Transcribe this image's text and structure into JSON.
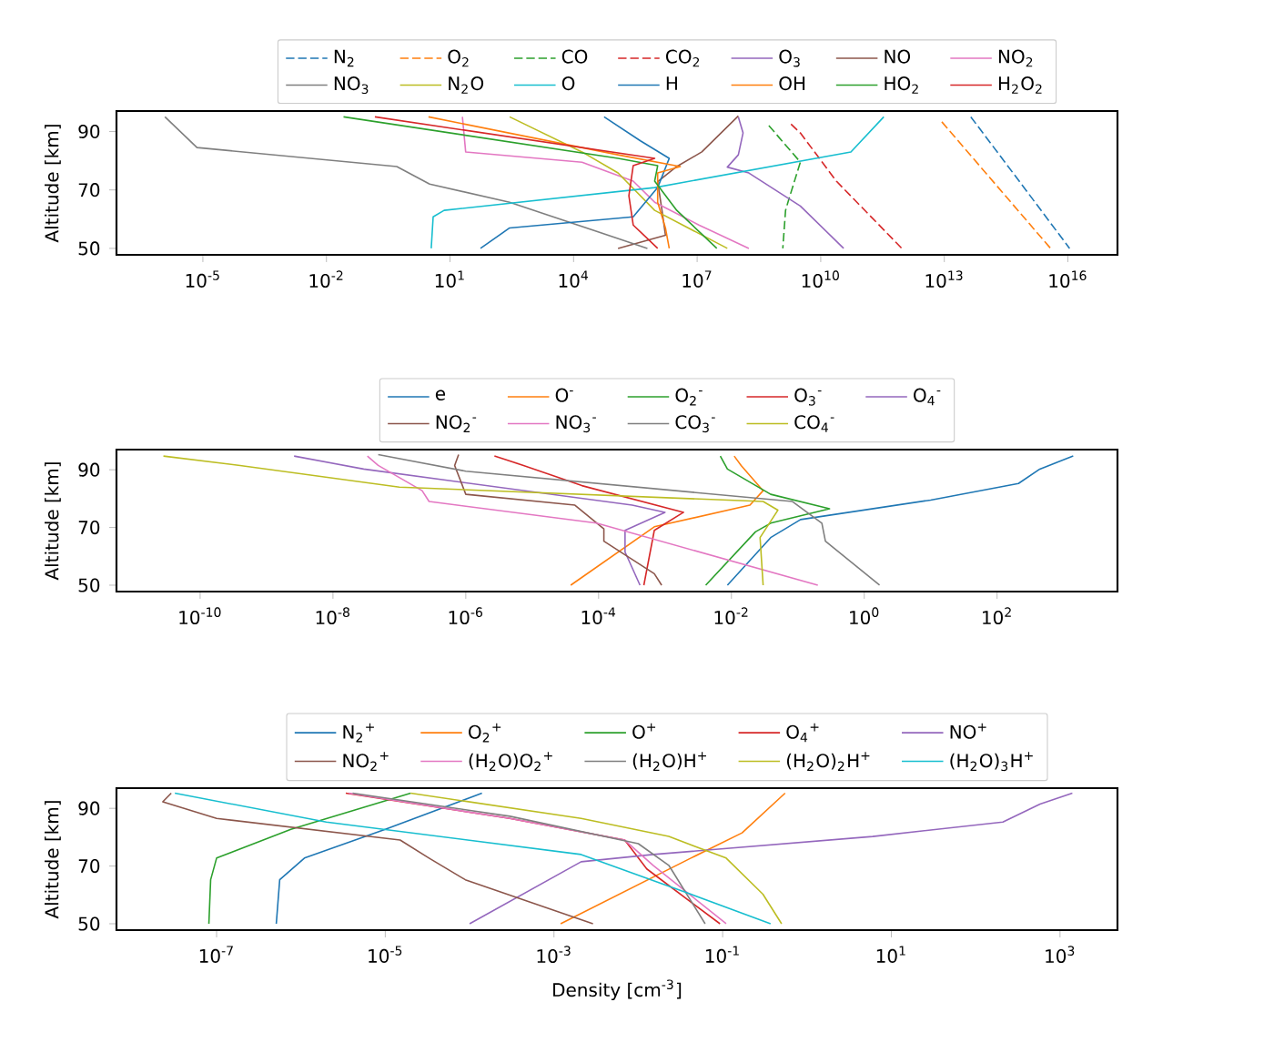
{
  "chart_data": [
    {
      "type": "line",
      "ylabel": "Altitude [km]",
      "log": "x",
      "legend": "top",
      "xlim": [
        8e-08,
        1.6e+17
      ],
      "ylim": [
        47.8,
        97
      ],
      "yticks": [
        50,
        70,
        90
      ],
      "xticks": [
        {
          "value": 1e-05,
          "label": "10$^{-5}$"
        },
        {
          "value": 0.01,
          "label": "10$^{-2}$"
        },
        {
          "value": 10.0,
          "label": "10$^{1}$"
        },
        {
          "value": 10000.0,
          "label": "10$^{4}$"
        },
        {
          "value": 10000000.0,
          "label": "10$^{7}$"
        },
        {
          "value": 10000000000.0,
          "label": "10$^{10}$"
        },
        {
          "value": 10000000000000.0,
          "label": "10$^{13}$"
        },
        {
          "value": 1e+16,
          "label": "10$^{16}$"
        }
      ],
      "series": [
        {
          "name": "N$_{2}$",
          "color": "#1f77b4",
          "line_style": "dashed",
          "x": [
            44000000000000.0,
            700000000000000.0,
            1.1e+16
          ],
          "values": [
            95,
            72.5,
            50
          ]
        },
        {
          "name": "O$_{2}$",
          "color": "#ff7f0e",
          "line_style": "dashed",
          "x": [
            8700000000000.0,
            3800000000000000.0
          ],
          "values": [
            93.3,
            50
          ]
        },
        {
          "name": "CO",
          "color": "#2ca02c",
          "line_style": "dashed",
          "x": [
            550000000.0,
            3200000000.0,
            1700000000.0,
            1400000000.0,
            1200000000.0
          ],
          "values": [
            92,
            79.5,
            67,
            63,
            50
          ]
        },
        {
          "name": "CO$_{2}$",
          "color": "#d62728",
          "line_style": "dashed",
          "x": [
            1900000000.0,
            3200000000.0,
            24000000000.0,
            930000000000.0
          ],
          "values": [
            92.5,
            89.5,
            73,
            50
          ]
        },
        {
          "name": "O$_{3}$",
          "color": "#9467bd",
          "x": [
            100000000.0,
            130000000.0,
            100000000.0,
            54000000.0,
            180000000.0,
            3200000000.0,
            36000000000.0
          ],
          "values": [
            95,
            89.5,
            82,
            77.8,
            75.8,
            64.5,
            50
          ]
        },
        {
          "name": "NO",
          "color": "#8c564b",
          "x": [
            100000000.0,
            13000000.0,
            3200000.0,
            1100000.0,
            1400000.0,
            1700000.0,
            120000.0
          ],
          "values": [
            95.3,
            83,
            78,
            72.8,
            63,
            54.5,
            50
          ]
        },
        {
          "name": "NO$_{2}$",
          "color": "#e377c2",
          "x": [
            20,
            24,
            16000.0,
            280000.0,
            930000.0,
            11000000.0,
            180000000.0
          ],
          "values": [
            95,
            83,
            79.5,
            73,
            65.8,
            58,
            50
          ]
        },
        {
          "name": "NO$_{3}$",
          "color": "#7f7f7f",
          "x": [
            1.2e-06,
            7.2e-06,
            0.51,
            3.2,
            280,
            620000.0
          ],
          "values": [
            95,
            84.5,
            78,
            72,
            65.8,
            50
          ]
        },
        {
          "name": "N$_{2}$O",
          "color": "#bcbd22",
          "x": [
            280,
            16000.0,
            120000.0,
            930000.0,
            54000000.0
          ],
          "values": [
            95,
            83,
            75.8,
            63,
            50
          ]
        },
        {
          "name": "O",
          "color": "#17becf",
          "x": [
            340000000000.0,
            54000000000.0,
            930000.0,
            7.2,
            3.9,
            3.5
          ],
          "values": [
            95,
            83,
            70.8,
            63,
            60.8,
            50
          ]
        },
        {
          "name": "H",
          "color": "#1f77b4",
          "x": [
            55000.0,
            420000.0,
            2100000.0,
            1100000.0,
            280000.0,
            280,
            55
          ],
          "values": [
            95,
            86.8,
            80.8,
            70.8,
            60.8,
            57,
            50
          ]
        },
        {
          "name": "OH",
          "color": "#ff7f0e",
          "x": [
            3,
            120000.0,
            3900000.0,
            1100000.0,
            1100000.0,
            1700000.0,
            2100000.0
          ],
          "values": [
            95,
            82,
            78,
            75.8,
            65.8,
            57,
            50
          ]
        },
        {
          "name": "HO$_{2}$",
          "color": "#2ca02c",
          "x": [
            0.026,
            120000.0,
            1100000.0,
            930000.0,
            3200000.0,
            30000000.0
          ],
          "values": [
            95,
            80.8,
            78.3,
            73,
            63,
            50
          ]
        },
        {
          "name": "H$_{2}$O$_{2}$",
          "color": "#d62728",
          "x": [
            0.15,
            930000.0,
            280000.0,
            220000.0,
            280000.0,
            1100000.0
          ],
          "values": [
            95,
            80.8,
            78.3,
            68,
            58,
            50
          ]
        }
      ]
    },
    {
      "type": "line",
      "ylabel": "Altitude [km]",
      "log": "x",
      "legend": "top",
      "xlim": [
        5.5e-12,
        6500
      ],
      "ylim": [
        47.8,
        97
      ],
      "yticks": [
        50,
        70,
        90
      ],
      "xticks": [
        {
          "value": 1e-10,
          "label": "10$^{-10}$"
        },
        {
          "value": 1e-08,
          "label": "10$^{-8}$"
        },
        {
          "value": 1e-06,
          "label": "10$^{-6}$"
        },
        {
          "value": 0.0001,
          "label": "10$^{-4}$"
        },
        {
          "value": 0.01,
          "label": "10$^{-2}$"
        },
        {
          "value": 1,
          "label": "10$^{0}$"
        },
        {
          "value": 100,
          "label": "10$^{2}$"
        }
      ],
      "series": [
        {
          "name": "e",
          "color": "#1f77b4",
          "x": [
            1400,
            440,
            210,
            10,
            0.11,
            0.039,
            0.0087
          ],
          "values": [
            94.75,
            90.25,
            85.25,
            79.5,
            72.75,
            66.5,
            50
          ]
        },
        {
          "name": "O$^{-}$",
          "color": "#ff7f0e",
          "x": [
            0.011,
            0.014,
            0.03,
            0.019,
            0.00069,
            3.8e-05
          ],
          "values": [
            94.75,
            91.5,
            82.75,
            77.75,
            70.25,
            50
          ]
        },
        {
          "name": "O$_{2}$$^{-}$",
          "color": "#2ca02c",
          "x": [
            0.0068,
            0.0087,
            0.039,
            0.3,
            0.039,
            0.023,
            0.0041
          ],
          "values": [
            94.75,
            90.25,
            81.5,
            76.5,
            71.5,
            68.5,
            50
          ]
        },
        {
          "name": "O$_{3}$$^{-}$",
          "color": "#d62728",
          "x": [
            2.7e-06,
            7.4e-06,
            5.6e-05,
            0.0019,
            0.00069,
            0.00048
          ],
          "values": [
            94.75,
            91.5,
            84.5,
            75.25,
            69,
            50
          ]
        },
        {
          "name": "O$_{4}$$^{-}$",
          "color": "#9467bd",
          "x": [
            2.6e-09,
            2.9e-08,
            0.00032,
            0.001,
            0.00025,
            0.00025,
            0.00042
          ],
          "values": [
            94.75,
            90.25,
            77.75,
            75.25,
            69,
            61.5,
            50
          ]
        },
        {
          "name": "NO$_{2}$$^{-}$",
          "color": "#8c564b",
          "x": [
            7.8e-07,
            6.8e-07,
            1e-06,
            4.4e-05,
            0.00012,
            0.00012,
            0.00069,
            0.00089
          ],
          "values": [
            95.25,
            91.5,
            81.5,
            77.75,
            69.5,
            65.25,
            54,
            50
          ]
        },
        {
          "name": "NO$_{3}$$^{-}$",
          "color": "#e377c2",
          "x": [
            3.3e-08,
            4.8e-08,
            2.2e-07,
            2.8e-07,
            9.3e-05,
            0.2
          ],
          "values": [
            94.75,
            91.5,
            82.75,
            79,
            71.5,
            50
          ]
        },
        {
          "name": "CO$_{3}$$^{-}$",
          "color": "#7f7f7f",
          "x": [
            4.8e-08,
            1e-06,
            0.083,
            0.23,
            0.26,
            1.7
          ],
          "values": [
            95.25,
            89.5,
            79,
            71.5,
            65.25,
            50
          ]
        },
        {
          "name": "CO$_{4}$$^{-}$",
          "color": "#bcbd22",
          "x": [
            2.8e-11,
            4e-10,
            1e-07,
            0.03,
            0.05,
            0.027,
            0.03
          ],
          "values": [
            94.75,
            91.5,
            84,
            79,
            76,
            66.5,
            50
          ]
        }
      ]
    },
    {
      "type": "line",
      "ylabel": "Altitude [km]",
      "xlabel": "Density [cm$^{-3}$]",
      "log": "x",
      "legend": "top",
      "xlim": [
        6.5e-09,
        4800
      ],
      "ylim": [
        47.8,
        97
      ],
      "yticks": [
        50,
        70,
        90
      ],
      "xticks": [
        {
          "value": 1e-07,
          "label": "10$^{-7}$"
        },
        {
          "value": 1e-05,
          "label": "10$^{-5}$"
        },
        {
          "value": 0.001,
          "label": "10$^{-3}$"
        },
        {
          "value": 0.1,
          "label": "10$^{-1}$"
        },
        {
          "value": 10,
          "label": "10$^{1}$"
        },
        {
          "value": 1000,
          "label": "10$^{3}$"
        }
      ],
      "series": [
        {
          "name": "N$_{2}$$^{+}$",
          "color": "#1f77b4",
          "x": [
            0.00014,
            1e-05,
            1.1e-06,
            5.6e-07,
            5.1e-07
          ],
          "values": [
            95.25,
            82.75,
            72.75,
            65.25,
            50
          ]
        },
        {
          "name": "O$_{2}$$^{+}$",
          "color": "#ff7f0e",
          "x": [
            0.55,
            0.17,
            0.042,
            0.0012
          ],
          "values": [
            95.25,
            81.5,
            72.75,
            50
          ]
        },
        {
          "name": "O$^{+}$",
          "color": "#2ca02c",
          "x": [
            2e-05,
            7.6e-07,
            1e-07,
            8.5e-08,
            8.1e-08
          ],
          "values": [
            95.25,
            82.75,
            72.75,
            65.25,
            50
          ]
        },
        {
          "name": "O$_{4}$$^{+}$",
          "color": "#d62728",
          "x": [
            3.4e-06,
            0.0003,
            0.0069,
            0.0126,
            0.093
          ],
          "values": [
            95.25,
            86.5,
            79,
            69,
            50
          ]
        },
        {
          "name": "NO$^{+}$",
          "color": "#9467bd",
          "x": [
            1400,
            580,
            210,
            6,
            0.015,
            0.0021,
            0.0001
          ],
          "values": [
            95.25,
            91.5,
            85.25,
            80.25,
            74,
            71.5,
            50
          ]
        },
        {
          "name": "NO$_{2}$$^{+}$",
          "color": "#8c564b",
          "x": [
            2.9e-08,
            2.3e-08,
            1e-07,
            1.5e-05,
            3.3e-05,
            8.9e-05,
            0.0029
          ],
          "values": [
            95.25,
            92.25,
            86.5,
            79,
            72.75,
            65.25,
            50
          ]
        },
        {
          "name": "(H$_{2}$O)O$_{2}$$^{+}$",
          "color": "#e377c2",
          "x": [
            3.7e-06,
            0.0003,
            0.0069,
            0.015,
            0.11
          ],
          "values": [
            95.25,
            86.5,
            79,
            70.25,
            50
          ]
        },
        {
          "name": "(H$_{2}$O)H$^{+}$",
          "color": "#7f7f7f",
          "x": [
            4.1e-06,
            0.0003,
            0.01,
            0.023,
            0.062
          ],
          "values": [
            95.25,
            87.25,
            77.75,
            70.25,
            50
          ]
        },
        {
          "name": "(H$_{2}$O)$_{2}$H$^{+}$",
          "color": "#bcbd22",
          "x": [
            2e-05,
            0.0021,
            0.023,
            0.11,
            0.3,
            0.5
          ],
          "values": [
            95.25,
            86.5,
            80.25,
            72.75,
            60.25,
            50
          ]
        },
        {
          "name": "(H$_{2}$O)$_{3}$H$^{+}$",
          "color": "#17becf",
          "x": [
            3.2e-08,
            2e-06,
            0.0021,
            0.042,
            0.37
          ],
          "values": [
            95.25,
            85.25,
            74,
            60.25,
            50
          ]
        }
      ]
    }
  ]
}
